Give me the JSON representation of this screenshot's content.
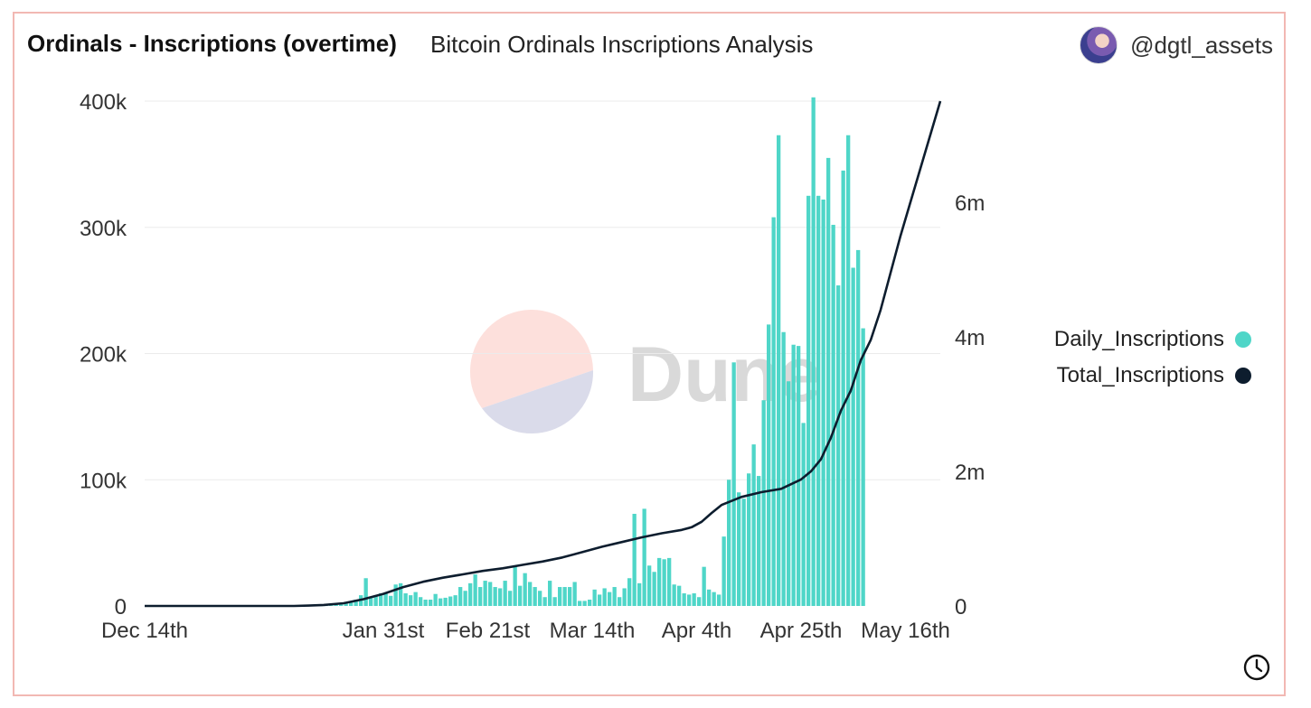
{
  "header": {
    "title": "Ordinals - Inscriptions (overtime)",
    "subtitle": "Bitcoin Ordinals Inscriptions Analysis",
    "author": "@dgtl_assets"
  },
  "watermark": {
    "text": "Dune"
  },
  "legend": [
    {
      "label": "Daily_Inscriptions",
      "color": "#4fd6c8"
    },
    {
      "label": "Total_Inscriptions",
      "color": "#0d1d2e"
    }
  ],
  "icons": {
    "avatar": "avatar-icon",
    "clock": "clock-icon"
  },
  "chart_data": {
    "type": "bar",
    "title": "Ordinals - Inscriptions (overtime)",
    "x_start": "Dec 14th",
    "x_tick_labels": [
      "Dec 14th",
      "Jan 31st",
      "Feb 21st",
      "Mar 14th",
      "Apr 4th",
      "Apr 25th",
      "May 16th"
    ],
    "x_tick_day_index": [
      0,
      48,
      69,
      90,
      111,
      132,
      153
    ],
    "y_left": {
      "ticks": [
        0,
        100000,
        200000,
        300000,
        400000
      ],
      "tick_labels": [
        "0",
        "100k",
        "200k",
        "300k",
        "400k"
      ],
      "ylim": [
        0,
        400000
      ]
    },
    "y_right": {
      "ticks": [
        0,
        2000000,
        4000000,
        6000000
      ],
      "tick_labels": [
        "0",
        "2m",
        "4m",
        "6m"
      ],
      "ylim": [
        0,
        7500000
      ]
    },
    "grid": true,
    "legend_position": "right",
    "series": [
      {
        "name": "Daily_Inscriptions",
        "type": "bar",
        "axis": "left",
        "color": "#4fd6c8",
        "start_day_index": 30,
        "values": [
          100,
          100,
          150,
          200,
          200,
          200,
          300,
          500,
          1000,
          1500,
          2500,
          3500,
          5000,
          8500,
          22000,
          6500,
          8500,
          10000,
          10000,
          8000,
          17000,
          18000,
          10000,
          8500,
          11000,
          7000,
          5000,
          5000,
          9500,
          6000,
          6500,
          7500,
          8500,
          15000,
          12000,
          18000,
          25000,
          15000,
          20000,
          19000,
          15000,
          14000,
          20000,
          12000,
          32000,
          16000,
          26000,
          19000,
          15000,
          12000,
          7000,
          20000,
          7000,
          15000,
          15000,
          15000,
          19000,
          4000,
          4000,
          5000,
          13000,
          9000,
          14000,
          11000,
          15000,
          7000,
          14000,
          22000,
          73000,
          18000,
          77000,
          32000,
          27000,
          38000,
          37000,
          38000,
          17000,
          16000,
          10000,
          9000,
          10000,
          7000,
          31000,
          13000,
          11000,
          9000,
          55000,
          100000,
          193000,
          90000,
          85000,
          105000,
          128000,
          103000,
          163000,
          223000,
          308000,
          373000,
          217000,
          178000,
          207000,
          206000,
          145000,
          325000,
          403000,
          325000,
          322000,
          355000,
          302000,
          254000,
          345000,
          373000,
          268000,
          282000,
          220000
        ]
      },
      {
        "name": "Total_Inscriptions",
        "type": "line",
        "axis": "right",
        "color": "#0d1d2e",
        "start_day_index": 0,
        "points": [
          [
            0,
            0
          ],
          [
            30,
            0
          ],
          [
            33,
            5000
          ],
          [
            36,
            15000
          ],
          [
            40,
            40000
          ],
          [
            44,
            100000
          ],
          [
            48,
            180000
          ],
          [
            52,
            280000
          ],
          [
            56,
            360000
          ],
          [
            60,
            420000
          ],
          [
            64,
            470000
          ],
          [
            68,
            520000
          ],
          [
            72,
            560000
          ],
          [
            76,
            610000
          ],
          [
            80,
            660000
          ],
          [
            84,
            720000
          ],
          [
            88,
            800000
          ],
          [
            92,
            880000
          ],
          [
            96,
            950000
          ],
          [
            100,
            1020000
          ],
          [
            104,
            1080000
          ],
          [
            108,
            1130000
          ],
          [
            110,
            1170000
          ],
          [
            112,
            1250000
          ],
          [
            114,
            1380000
          ],
          [
            116,
            1500000
          ],
          [
            120,
            1620000
          ],
          [
            124,
            1690000
          ],
          [
            128,
            1740000
          ],
          [
            132,
            1880000
          ],
          [
            134,
            2000000
          ],
          [
            136,
            2180000
          ],
          [
            138,
            2500000
          ],
          [
            140,
            2900000
          ],
          [
            142,
            3200000
          ],
          [
            144,
            3650000
          ],
          [
            146,
            3950000
          ],
          [
            148,
            4400000
          ],
          [
            150,
            4950000
          ],
          [
            152,
            5500000
          ],
          [
            154,
            6000000
          ],
          [
            156,
            6500000
          ],
          [
            158,
            7000000
          ],
          [
            160,
            7500000
          ]
        ]
      }
    ]
  }
}
